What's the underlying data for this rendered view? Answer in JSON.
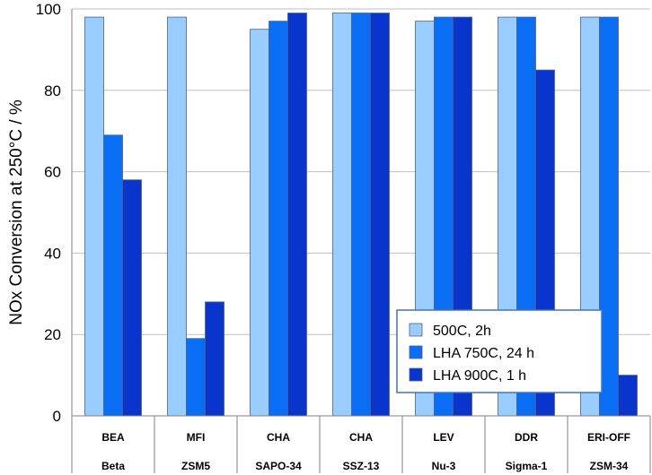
{
  "chart_data": {
    "type": "bar",
    "title": "",
    "xlabel": "",
    "ylabel": "NOx Conversion at 250°C / %",
    "ylim": [
      0,
      100
    ],
    "yticks": [
      0,
      20,
      40,
      60,
      80,
      100
    ],
    "grid": true,
    "legend_position": "bottom-right",
    "categories": [
      {
        "framework": "BEA",
        "material": "Beta"
      },
      {
        "framework": "MFI",
        "material": "ZSM5"
      },
      {
        "framework": "CHA",
        "material": "SAPO-34"
      },
      {
        "framework": "CHA",
        "material": "SSZ-13"
      },
      {
        "framework": "LEV",
        "material": "Nu-3"
      },
      {
        "framework": "DDR",
        "material": "Sigma-1"
      },
      {
        "framework": "ERI-OFF",
        "material": "ZSM-34"
      }
    ],
    "series": [
      {
        "name": "500C, 2h",
        "color": "#99ccff",
        "values": [
          98,
          98,
          95,
          99,
          97,
          98,
          98
        ]
      },
      {
        "name": "LHA 750C, 24 h",
        "color": "#0a6ef5",
        "values": [
          69,
          19,
          97,
          99,
          98,
          98,
          98
        ]
      },
      {
        "name": "LHA 900C, 1 h",
        "color": "#0a35cc",
        "values": [
          58,
          28,
          99,
          99,
          98,
          85,
          10
        ]
      }
    ]
  }
}
